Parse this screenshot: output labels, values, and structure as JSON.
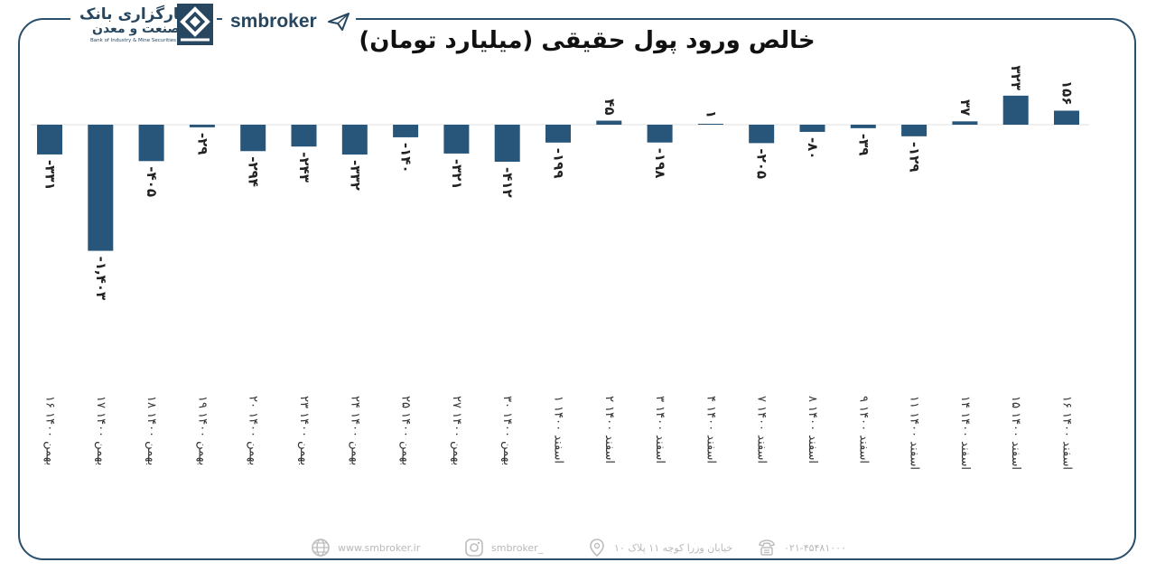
{
  "logo": {
    "name_fa_line1": "کارگزاری بانک",
    "name_fa_line2": "صنعت و معدن",
    "name_en": "Bank of Industry & Mine Securities",
    "brand": "smbroker"
  },
  "chart_data": {
    "type": "bar",
    "title": "خالص ورود پول حقیقی (میلیارد تومان)",
    "categories": [
      "16 بهمن 1400",
      "17 بهمن 1400",
      "18 بهمن 1400",
      "19 بهمن 1400",
      "20 بهمن 1400",
      "23 بهمن 1400",
      "24 بهمن 1400",
      "25 بهمن 1400",
      "27 بهمن 1400",
      "30 بهمن 1400",
      "1 اسفند 1400",
      "2 اسفند 1400",
      "3 اسفند 1400",
      "4 اسفند 1400",
      "7 اسفند 1400",
      "8 اسفند 1400",
      "9 اسفند 1400",
      "11 اسفند 1400",
      "14 اسفند 1400",
      "15 اسفند 1400",
      "16 اسفند 1400"
    ],
    "category_labels": [
      "۱۶ بهمن ۱۴۰۰",
      "۱۷ بهمن ۱۴۰۰",
      "۱۸ بهمن ۱۴۰۰",
      "۱۹ بهمن ۱۴۰۰",
      "۲۰ بهمن ۱۴۰۰",
      "۲۳ بهمن ۱۴۰۰",
      "۲۴ بهمن ۱۴۰۰",
      "۲۵ بهمن ۱۴۰۰",
      "۲۷ بهمن ۱۴۰۰",
      "۳۰ بهمن ۱۴۰۰",
      "۱ اسفند ۱۴۰۰",
      "۲ اسفند ۱۴۰۰",
      "۳ اسفند ۱۴۰۰",
      "۴ اسفند ۱۴۰۰",
      "۷ اسفند ۱۴۰۰",
      "۸ اسفند ۱۴۰۰",
      "۹ اسفند ۱۴۰۰",
      "۱۱ اسفند ۱۴۰۰",
      "۱۴ اسفند ۱۴۰۰",
      "۱۵ اسفند ۱۴۰۰",
      "۱۶ اسفند ۱۴۰۰"
    ],
    "values": [
      -331,
      -1403,
      -405,
      -29,
      -294,
      -243,
      -332,
      -140,
      -321,
      -412,
      -199,
      45,
      -198,
      1,
      -205,
      -80,
      -39,
      -129,
      37,
      323,
      156
    ],
    "value_labels": [
      "-۳۳۱",
      "-۱,۴۰۳",
      "-۴۰۵",
      "-۲۹",
      "-۲۹۴",
      "-۲۴۳",
      "-۳۳۲",
      "-۱۴۰",
      "-۳۲۱",
      "-۴۱۲",
      "-۱۹۹",
      "۴۵",
      "-۱۹۸",
      "۱",
      "-۲۰۵",
      "-۸۰",
      "-۳۹",
      "-۱۲۹",
      "۳۷",
      "۳۲۳",
      "۱۵۶"
    ],
    "bar_color": "#27567a",
    "xlabel": "",
    "ylabel": "",
    "grid": false
  },
  "footer": {
    "website": "www.smbroker.ir",
    "instagram": "smbroker_",
    "address": "خیابان وزرا کوچه ۱۱ پلاک ۱۰",
    "phone": "۰۲۱-۴۵۴۸۱۰۰۰"
  }
}
